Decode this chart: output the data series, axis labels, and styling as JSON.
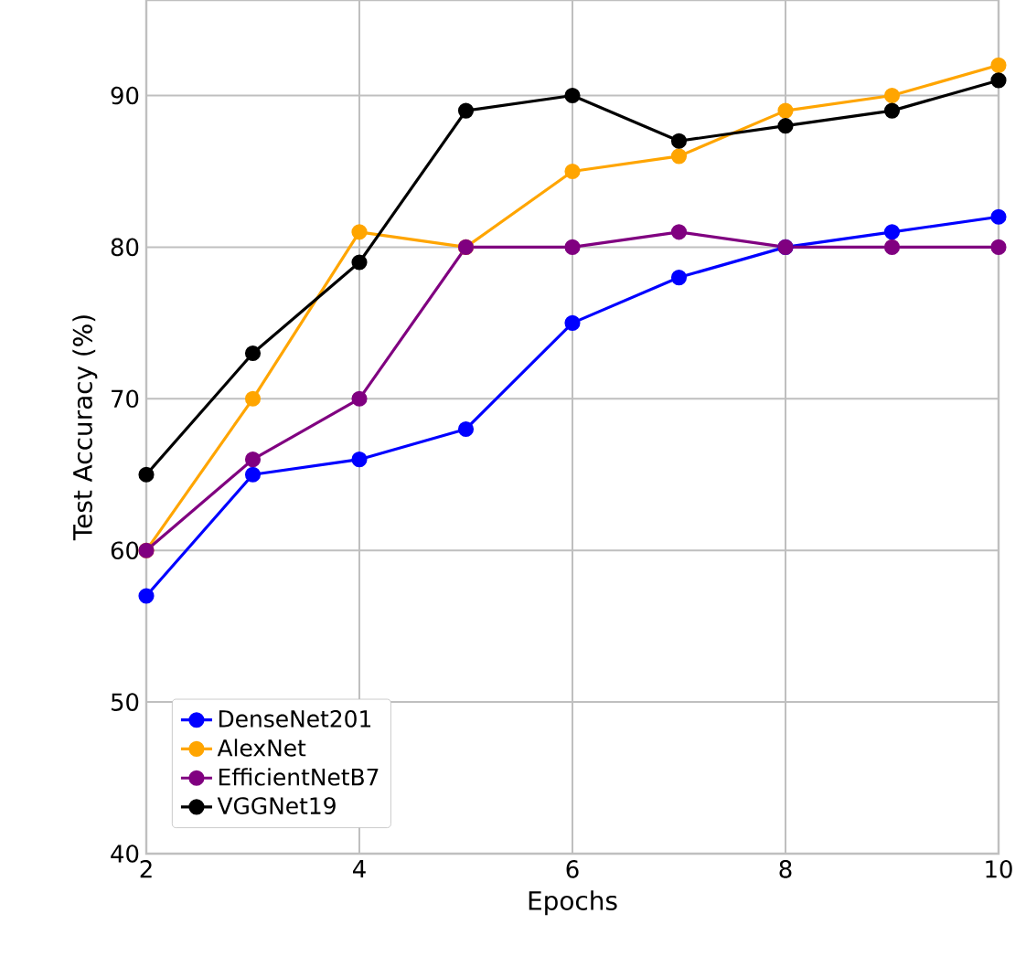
{
  "chart_data": {
    "type": "line",
    "xlabel": "Epochs",
    "ylabel": "Test Accuracy (%)",
    "x": [
      2,
      3,
      4,
      5,
      6,
      7,
      8,
      9,
      10
    ],
    "series": [
      {
        "name": "DenseNet201",
        "color": "#0000ff",
        "values": [
          57,
          65,
          66,
          68,
          75,
          78,
          80,
          81,
          82
        ]
      },
      {
        "name": "AlexNet",
        "color": "#ffa500",
        "values": [
          60,
          70,
          81,
          80,
          85,
          86,
          89,
          90,
          92
        ]
      },
      {
        "name": "EfficientNetB7",
        "color": "#800080",
        "values": [
          60,
          66,
          70,
          80,
          80,
          81,
          80,
          80,
          80
        ]
      },
      {
        "name": "VGGNet19",
        "color": "#000000",
        "values": [
          65,
          73,
          79,
          89,
          90,
          87,
          88,
          89,
          91
        ]
      }
    ],
    "xlim": [
      2,
      10
    ],
    "ylim": [
      40,
      96.3
    ],
    "xticks": [
      2,
      4,
      6,
      8,
      10
    ],
    "yticks": [
      40,
      50,
      60,
      70,
      80,
      90
    ],
    "grid": true,
    "legend": "bottom left",
    "marker": "circle",
    "line_style": "solid"
  }
}
